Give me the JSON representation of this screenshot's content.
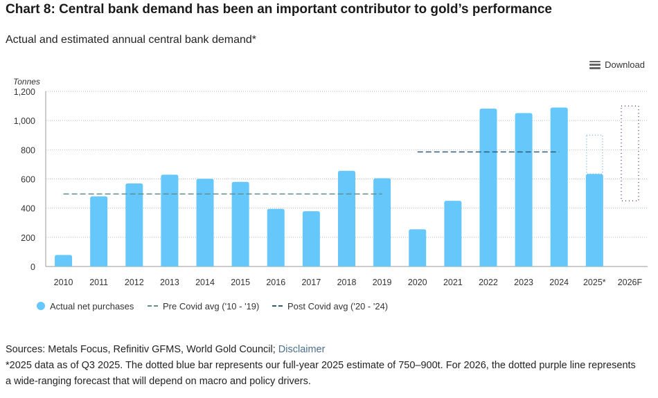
{
  "title": "Chart 8: Central bank demand has been an important contributor to gold’s performance",
  "subtitle": "Actual and estimated annual central bank demand*",
  "download_label": "Download",
  "colors": {
    "bar": "#66c8fa",
    "pre_covid": "#5f8f8f",
    "post_covid": "#2f5a7a",
    "estimate_2025": "#7fb8d8",
    "forecast_2026": "#6a3a7a"
  },
  "chart_data": {
    "type": "bar",
    "ylabel": "Tonnes",
    "ylim": [
      0,
      1200
    ],
    "yticks": [
      "0",
      "200",
      "400",
      "600",
      "800",
      "1,000",
      "1,200"
    ],
    "ytick_values": [
      0,
      200,
      400,
      600,
      800,
      1000,
      1200
    ],
    "grid": true,
    "categories": [
      "2010",
      "2011",
      "2012",
      "2013",
      "2014",
      "2015",
      "2016",
      "2017",
      "2018",
      "2019",
      "2020",
      "2021",
      "2022",
      "2023",
      "2024",
      "2025*",
      "2026F"
    ],
    "series": [
      {
        "name": "Actual net purchases",
        "values": [
          79,
          481,
          569,
          629,
          601,
          580,
          395,
          379,
          656,
          605,
          255,
          450,
          1082,
          1051,
          1089,
          634,
          null
        ]
      }
    ],
    "averages": [
      {
        "name": "Pre Covid avg ('10 - '19)",
        "value": 497,
        "from": "2010",
        "to": "2019"
      },
      {
        "name": "Post Covid avg ('20 - '24)",
        "value": 785,
        "from": "2020",
        "to": "2024"
      }
    ],
    "estimate_2025": {
      "category": "2025*",
      "high": 900
    },
    "forecast_2026": {
      "category": "2026F",
      "low": 450,
      "high": 1100
    },
    "legend_position": "bottom"
  },
  "footer": {
    "sources": "Sources: Metals Focus, Refinitiv GFMS, World Gold Council; ",
    "disclaimer": "Disclaimer",
    "note1": "*2025 data as of Q3 2025. The dotted blue bar represents our full-year 2025 estimate of 750–900t. For 2026, the dotted purple line represents",
    "note2": "a wide-ranging forecast that will depend on macro and policy drivers."
  }
}
